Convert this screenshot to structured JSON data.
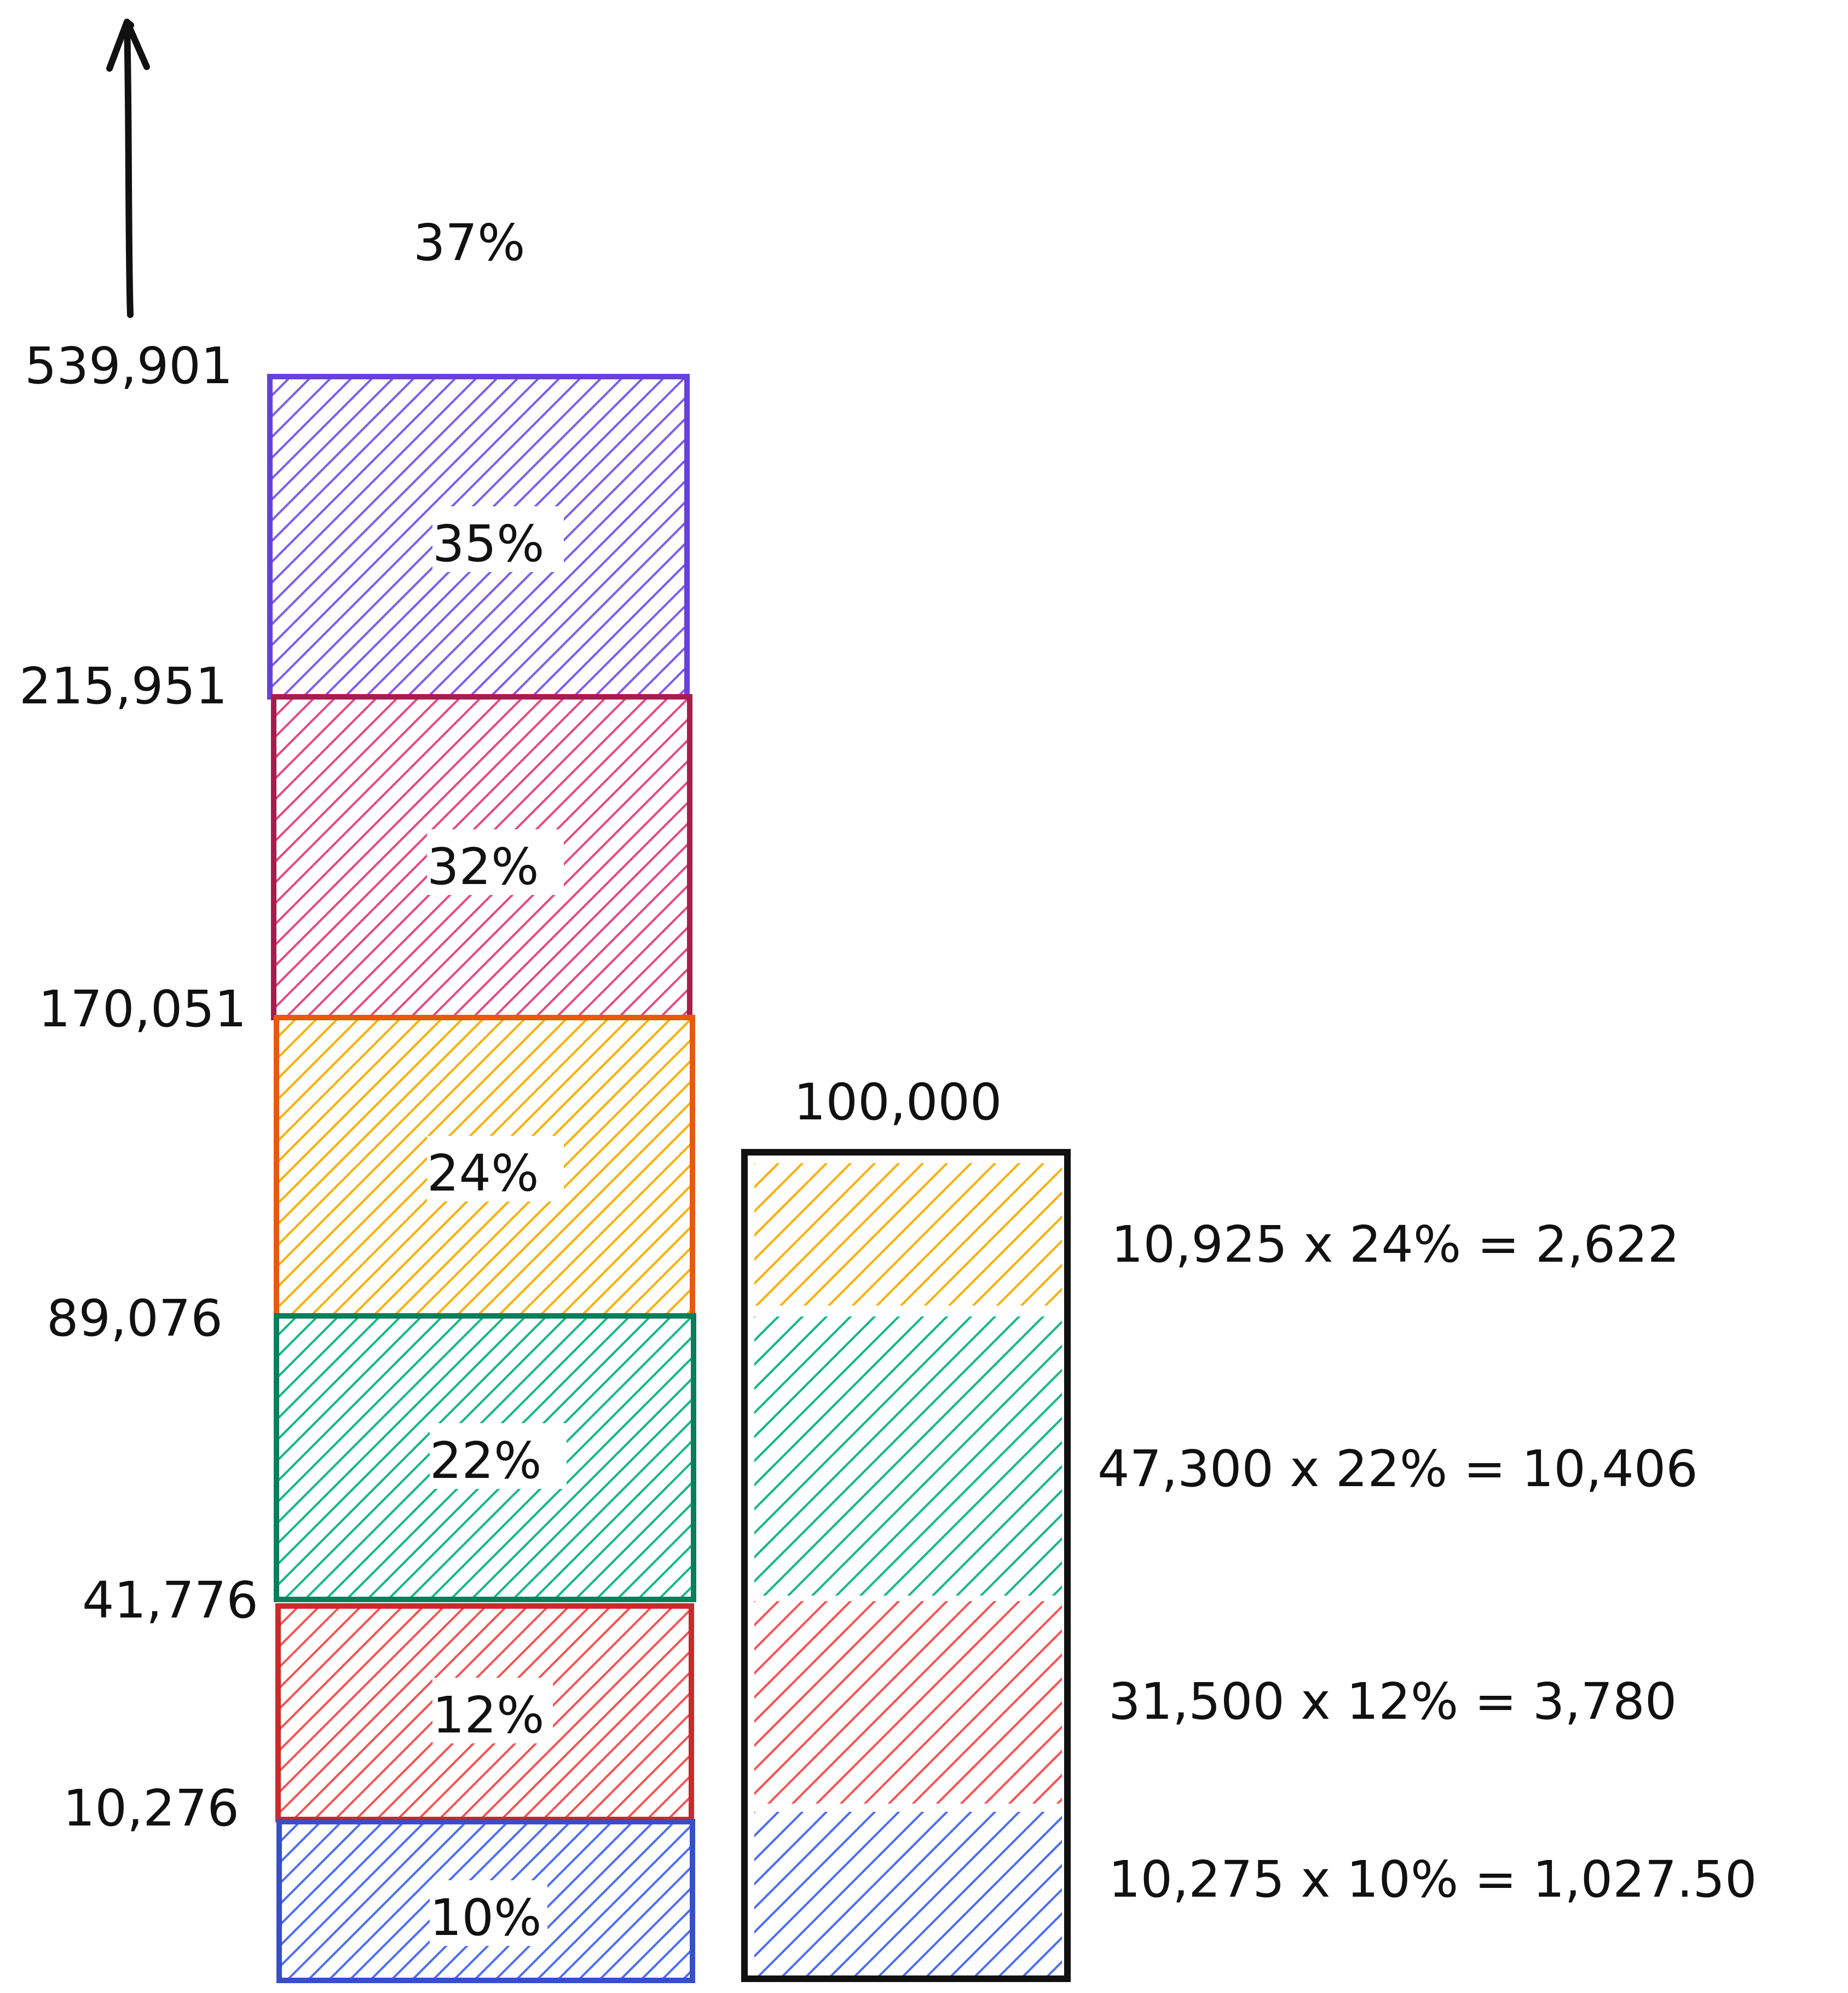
{
  "top_rate": "37%",
  "thresholds": [
    "539,901",
    "215,951",
    "170,051",
    "89,076",
    "41,776",
    "10,276"
  ],
  "brackets": [
    {
      "rate": "35%",
      "color": "#6741d9",
      "hatch": "#7b5cf0"
    },
    {
      "rate": "32%",
      "color": "#a61e4d",
      "hatch": "#e64980"
    },
    {
      "rate": "24%",
      "color": "#e8590c",
      "hatch": "#fab005"
    },
    {
      "rate": "22%",
      "color": "#087f5b",
      "hatch": "#12b886"
    },
    {
      "rate": "12%",
      "color": "#c92a2a",
      "hatch": "#fa5252"
    },
    {
      "rate": "10%",
      "color": "#364fc7",
      "hatch": "#4c6ef5"
    }
  ],
  "income": "100,000",
  "calculations": [
    {
      "text": "10,925 x 24% = 2,622",
      "hatch": "#fab005"
    },
    {
      "text": "47,300 x 22% = 10,406",
      "hatch": "#12b886"
    },
    {
      "text": "31,500 x 12% = 3,780",
      "hatch": "#fa5252"
    },
    {
      "text": "10,275 x 10% = 1,027.50",
      "hatch": "#4c6ef5"
    }
  ]
}
